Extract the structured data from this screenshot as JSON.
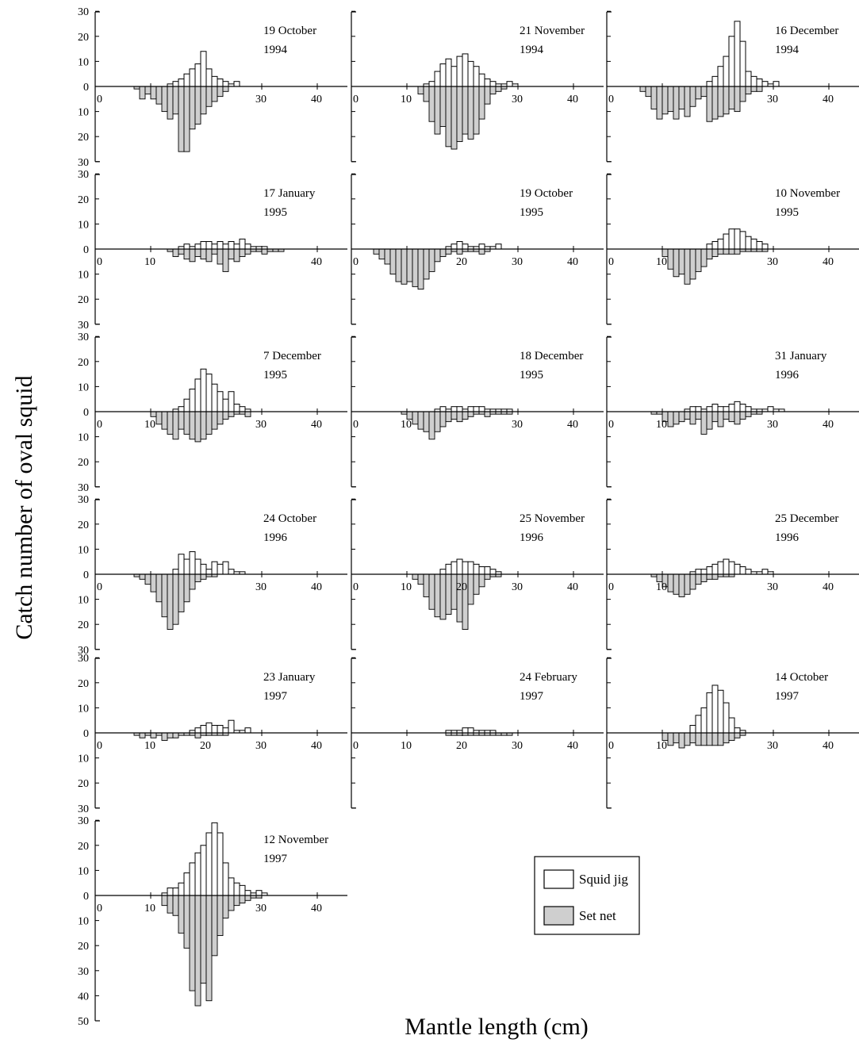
{
  "chart_data": {
    "type": "bar",
    "ylabel": "Catch number of oval squid",
    "xlabel": "Mantle length (cm)",
    "x_ticks": [
      0,
      10,
      20,
      30,
      40
    ],
    "legend": {
      "position": "bottom-right",
      "entries": [
        {
          "key": "jig",
          "label": "Squid jig",
          "color": "#ffffff"
        },
        {
          "key": "net",
          "label": "Set net",
          "color": "#cfcfcf"
        }
      ]
    },
    "bin_width_cm": 1,
    "panels": [
      {
        "id": "p1",
        "date_line1": "19 October",
        "date_line2": "1994",
        "y_ticks_up": [
          30,
          20,
          10,
          0
        ],
        "y_ticks_down": [
          10,
          20,
          30
        ],
        "x_ticks_shown": [
          "0",
          "",
          "",
          "30",
          "40"
        ],
        "jig_start": 13,
        "jig": [
          1,
          2,
          3,
          5,
          7,
          9,
          14,
          7,
          4,
          3,
          2,
          1,
          2
        ],
        "net_start": 7,
        "net": [
          1,
          5,
          3,
          5,
          7,
          10,
          13,
          11,
          26,
          26,
          17,
          15,
          11,
          8,
          6,
          4,
          2
        ]
      },
      {
        "id": "p2",
        "date_line1": "21 November",
        "date_line2": "1994",
        "y_ticks_up": [],
        "y_ticks_down": [],
        "x_ticks_shown": [
          "0",
          "10",
          "",
          "30",
          "40"
        ],
        "jig_start": 13,
        "jig": [
          1,
          2,
          6,
          9,
          11,
          8,
          12,
          13,
          10,
          8,
          5,
          3,
          2,
          1,
          1,
          2,
          1
        ],
        "net_start": 12,
        "net": [
          3,
          6,
          14,
          19,
          16,
          24,
          25,
          22,
          19,
          21,
          19,
          13,
          7,
          3,
          2,
          1
        ]
      },
      {
        "id": "p3",
        "date_line1": "16 December",
        "date_line2": "1994",
        "y_ticks_up": [],
        "y_ticks_down": [],
        "x_ticks_shown": [
          "0",
          "",
          "",
          "30",
          "40"
        ],
        "jig_start": 18,
        "jig": [
          2,
          4,
          8,
          12,
          20,
          26,
          18,
          6,
          4,
          3,
          2,
          1,
          2
        ],
        "net_start": 6,
        "net": [
          2,
          4,
          9,
          13,
          11,
          10,
          13,
          9,
          12,
          8,
          5,
          4,
          14,
          13,
          12,
          11,
          9,
          10,
          6,
          3,
          2,
          2
        ]
      },
      {
        "id": "p4",
        "date_line1": "17 January",
        "date_line2": "1995",
        "y_ticks_up": [
          30,
          20,
          10,
          0
        ],
        "y_ticks_down": [
          10,
          20,
          30
        ],
        "x_ticks_shown": [
          "0",
          "10",
          "",
          "",
          "40"
        ],
        "jig_start": 15,
        "jig": [
          1,
          2,
          1,
          2,
          3,
          3,
          2,
          3,
          2,
          3,
          2,
          4,
          2,
          1,
          1,
          1
        ],
        "net_start": 13,
        "net": [
          1,
          3,
          2,
          4,
          5,
          3,
          4,
          5,
          2,
          6,
          9,
          4,
          5,
          3,
          2,
          1,
          1,
          2,
          1,
          1,
          1
        ]
      },
      {
        "id": "p5",
        "date_line1": "19 October",
        "date_line2": "1995",
        "y_ticks_up": [],
        "y_ticks_down": [],
        "x_ticks_shown": [
          "0",
          "",
          "20",
          "30",
          "40"
        ],
        "jig_start": 17,
        "jig": [
          1,
          2,
          3,
          2,
          1,
          1,
          2,
          1,
          1,
          2
        ],
        "net_start": 4,
        "net": [
          2,
          4,
          6,
          10,
          13,
          14,
          13,
          15,
          16,
          12,
          9,
          5,
          3,
          2,
          1,
          2,
          1,
          1,
          1,
          2,
          1
        ]
      },
      {
        "id": "p6",
        "date_line1": "10 November",
        "date_line2": "1995",
        "y_ticks_up": [],
        "y_ticks_down": [],
        "x_ticks_shown": [
          "0",
          "10",
          "",
          "30",
          "40"
        ],
        "jig_start": 18,
        "jig": [
          2,
          3,
          4,
          6,
          8,
          8,
          7,
          5,
          4,
          3,
          2
        ],
        "net_start": 10,
        "net": [
          3,
          8,
          11,
          10,
          14,
          12,
          9,
          7,
          4,
          3,
          2,
          2,
          2,
          2,
          1,
          1,
          1,
          1,
          1
        ]
      },
      {
        "id": "p7",
        "date_line1": "7 December",
        "date_line2": "1995",
        "y_ticks_up": [
          30,
          20,
          10,
          0
        ],
        "y_ticks_down": [
          10,
          20,
          30
        ],
        "x_ticks_shown": [
          "0",
          "10",
          "",
          "30",
          "40"
        ],
        "jig_start": 14,
        "jig": [
          1,
          2,
          5,
          9,
          13,
          17,
          15,
          11,
          8,
          5,
          8,
          3,
          2,
          1
        ],
        "net_start": 10,
        "net": [
          2,
          5,
          7,
          9,
          11,
          7,
          9,
          11,
          12,
          11,
          9,
          7,
          5,
          3,
          2,
          1,
          1,
          2
        ]
      },
      {
        "id": "p8",
        "date_line1": "18 December",
        "date_line2": "1995",
        "y_ticks_up": [],
        "y_ticks_down": [],
        "x_ticks_shown": [
          "0",
          "10",
          "",
          "30",
          "40"
        ],
        "jig_start": 15,
        "jig": [
          1,
          2,
          1,
          2,
          2,
          1,
          2,
          2,
          2,
          1,
          1,
          1,
          1,
          1
        ],
        "net_start": 9,
        "net": [
          1,
          3,
          5,
          7,
          8,
          11,
          8,
          6,
          4,
          3,
          4,
          3,
          2,
          1,
          1,
          2,
          1,
          1,
          1,
          1
        ]
      },
      {
        "id": "p9",
        "date_line1": "31 January",
        "date_line2": "1996",
        "y_ticks_up": [],
        "y_ticks_down": [],
        "x_ticks_shown": [
          "0",
          "10",
          "",
          "30",
          "40"
        ],
        "jig_start": 14,
        "jig": [
          1,
          2,
          2,
          1,
          2,
          3,
          2,
          2,
          3,
          4,
          3,
          2,
          1,
          1,
          1,
          2,
          1,
          1
        ],
        "net_start": 8,
        "net": [
          1,
          1,
          4,
          6,
          5,
          4,
          3,
          5,
          3,
          9,
          7,
          4,
          6,
          3,
          4,
          5,
          3,
          2,
          1,
          1
        ]
      },
      {
        "id": "p10",
        "date_line1": "24 October",
        "date_line2": "1996",
        "y_ticks_up": [
          30,
          20,
          10,
          0
        ],
        "y_ticks_down": [
          10,
          20,
          30
        ],
        "x_ticks_shown": [
          "0",
          "",
          "",
          "30",
          "40"
        ],
        "jig_start": 14,
        "jig": [
          2,
          8,
          6,
          9,
          6,
          4,
          2,
          5,
          4,
          5,
          2,
          1,
          1
        ],
        "net_start": 7,
        "net": [
          1,
          2,
          4,
          7,
          11,
          17,
          22,
          20,
          15,
          11,
          6,
          3,
          2,
          1,
          1
        ]
      },
      {
        "id": "p11",
        "date_line1": "25 November",
        "date_line2": "1996",
        "y_ticks_up": [],
        "y_ticks_down": [],
        "x_ticks_shown": [
          "0",
          "10",
          "20",
          "30",
          "40"
        ],
        "jig_start": 16,
        "jig": [
          2,
          4,
          5,
          6,
          5,
          5,
          4,
          3,
          3,
          2,
          1
        ],
        "net_start": 11,
        "net": [
          2,
          4,
          9,
          14,
          17,
          18,
          16,
          14,
          19,
          22,
          12,
          8,
          5,
          2,
          1,
          1
        ]
      },
      {
        "id": "p12",
        "date_line1": "25 December",
        "date_line2": "1996",
        "y_ticks_up": [],
        "y_ticks_down": [],
        "x_ticks_shown": [
          "0",
          "10",
          "",
          "30",
          "40"
        ],
        "jig_start": 15,
        "jig": [
          1,
          2,
          2,
          3,
          4,
          5,
          6,
          5,
          4,
          3,
          2,
          1,
          1,
          2,
          1
        ],
        "net_start": 8,
        "net": [
          1,
          3,
          5,
          7,
          8,
          9,
          8,
          6,
          4,
          3,
          2,
          2,
          1,
          1,
          1
        ]
      },
      {
        "id": "p13",
        "date_line1": "23 January",
        "date_line2": "1997",
        "y_ticks_up": [
          30,
          20,
          10,
          0
        ],
        "y_ticks_down": [
          10,
          20,
          30
        ],
        "x_ticks_shown": [
          "0",
          "10",
          "20",
          "30",
          "40"
        ],
        "jig_start": 17,
        "jig": [
          1,
          2,
          3,
          4,
          3,
          3,
          2,
          5,
          1,
          1,
          2
        ],
        "net_start": 7,
        "net": [
          1,
          2,
          1,
          2,
          1,
          3,
          2,
          2,
          1,
          1,
          1,
          2,
          1,
          1,
          1,
          1,
          1
        ]
      },
      {
        "id": "p14",
        "date_line1": "24 February",
        "date_line2": "1997",
        "y_ticks_up": [],
        "y_ticks_down": [],
        "x_ticks_shown": [
          "0",
          "10",
          "20",
          "30",
          "40"
        ],
        "jig_start": 17,
        "jig": [
          1,
          1,
          1,
          2,
          2,
          1,
          1,
          1,
          1
        ],
        "net_start": 17,
        "net": [
          1,
          1,
          1,
          1,
          1,
          1,
          1,
          1,
          1,
          1,
          1,
          1
        ]
      },
      {
        "id": "p15",
        "date_line1": "14 October",
        "date_line2": "1997",
        "y_ticks_up": [],
        "y_ticks_down": [],
        "x_ticks_shown": [
          "0",
          "10",
          "",
          "30",
          "40"
        ],
        "jig_start": 15,
        "jig": [
          3,
          7,
          10,
          16,
          19,
          17,
          12,
          6,
          2,
          1
        ],
        "net_start": 10,
        "net": [
          3,
          5,
          4,
          6,
          5,
          4,
          5,
          5,
          5,
          5,
          5,
          4,
          3,
          2,
          1
        ]
      },
      {
        "id": "p16",
        "date_line1": "12 November",
        "date_line2": "1997",
        "y_ticks_up": [
          30,
          20,
          10,
          0
        ],
        "y_ticks_down": [
          10,
          20,
          30,
          40,
          50
        ],
        "x_ticks_shown": [
          "0",
          "10",
          "",
          "30",
          "40"
        ],
        "jig_start": 12,
        "jig": [
          1,
          3,
          3,
          5,
          9,
          13,
          17,
          20,
          25,
          29,
          25,
          13,
          7,
          5,
          4,
          2,
          1,
          2,
          1
        ],
        "net_start": 12,
        "net": [
          4,
          7,
          8,
          15,
          21,
          38,
          44,
          35,
          42,
          24,
          16,
          9,
          6,
          4,
          3,
          2,
          1,
          1
        ]
      }
    ]
  }
}
